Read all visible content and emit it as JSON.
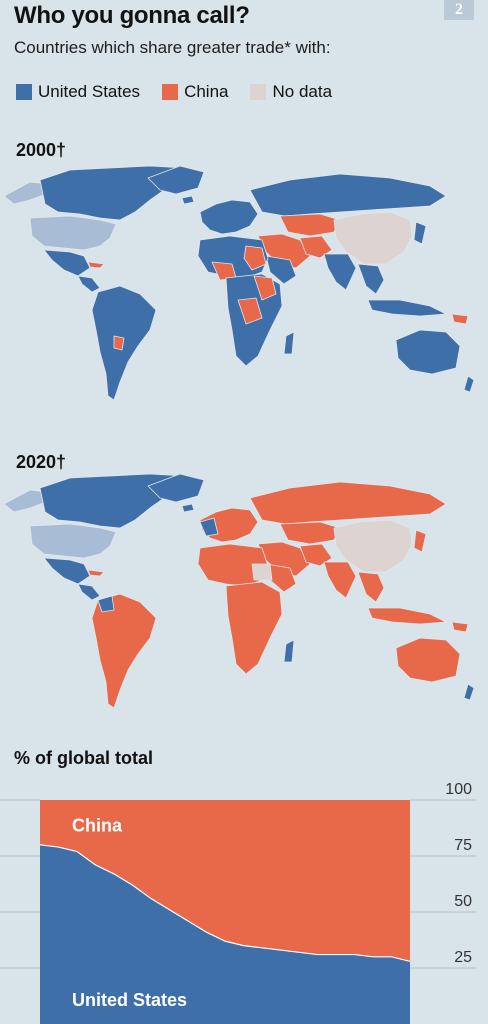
{
  "header": {
    "title": "Who you gonna call?",
    "badge": "2",
    "subtitle": "Countries which share greater trade* with:"
  },
  "legend": [
    {
      "label": "United States",
      "color": "#3f6fa8"
    },
    {
      "label": "China",
      "color": "#e8684a"
    },
    {
      "label": "No data",
      "color": "#ddd3d0"
    }
  ],
  "maps": [
    {
      "year_label": "2000†"
    },
    {
      "year_label": "2020†"
    }
  ],
  "colors": {
    "us": "#3f6fa8",
    "china": "#e8684a",
    "no_data": "#ddd3d0",
    "us_light": "#a9bcd5",
    "background": "#d9e3ea"
  },
  "chart_data": {
    "type": "area",
    "title": "% of global total",
    "ylim": [
      0,
      100
    ],
    "yticks": [
      100,
      75,
      50,
      25
    ],
    "grid": true,
    "x": [
      0,
      1,
      2,
      3,
      4,
      5,
      6,
      7,
      8,
      9,
      10,
      11,
      12,
      13,
      14,
      15,
      16,
      17,
      18,
      19,
      20
    ],
    "series": [
      {
        "name": "United States",
        "values": [
          80,
          79,
          77,
          71,
          67,
          62,
          56,
          51,
          46,
          41,
          37,
          35,
          34,
          33,
          32,
          31,
          31,
          31,
          30,
          30,
          28
        ]
      },
      {
        "name": "China",
        "values": [
          20,
          21,
          23,
          29,
          33,
          38,
          44,
          49,
          54,
          59,
          63,
          65,
          66,
          67,
          68,
          69,
          69,
          69,
          70,
          70,
          72
        ]
      }
    ]
  }
}
